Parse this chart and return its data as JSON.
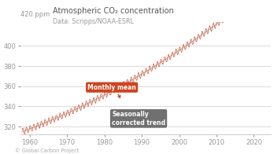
{
  "title": "Atmospheric CO₂ concentration",
  "subtitle": "Data: Scripps/NOAA-ESRL",
  "footer": "© Global Carbon Project",
  "xlabel_ticks": [
    1960,
    1970,
    1980,
    1990,
    2000,
    2010,
    2020
  ],
  "ylabel_ticks": [
    320,
    340,
    360,
    380,
    400
  ],
  "ylabel_label": "420 ppm",
  "xlim": [
    1957.5,
    2024.5
  ],
  "ylim": [
    312,
    424
  ],
  "trend_color": "#c0c0c0",
  "monthly_color": "#cc4422",
  "annotation_monthly_text": "Monthly mean",
  "annotation_monthly_color": "#cc4422",
  "annotation_seasonal_text": "Seasonally\ncorrected trend",
  "annotation_seasonal_color": "#707070",
  "bg_color": "#ffffff",
  "axes_color": "#cccccc",
  "tick_color": "#999999",
  "title_color": "#555555",
  "title_fontsize": 7.0,
  "subtitle_fontsize": 5.8,
  "tick_fontsize": 6.0,
  "footer_fontsize": 4.8
}
